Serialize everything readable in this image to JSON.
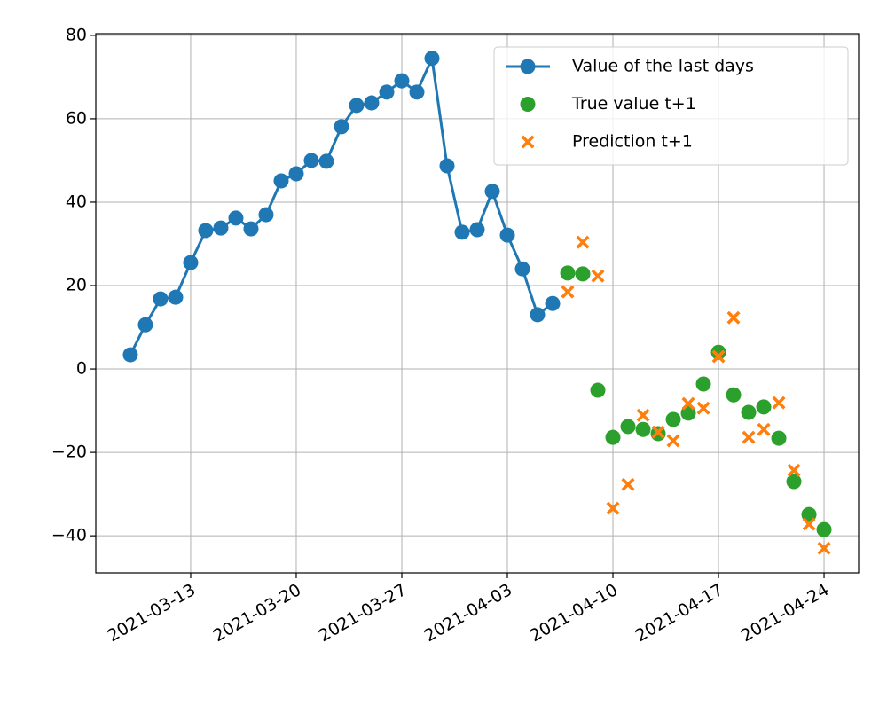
{
  "chart_data": {
    "type": "line",
    "series": [
      {
        "name": "Value of the last days",
        "type": "line",
        "color": "#1f77b4",
        "marker": "circle",
        "x": [
          "2021-03-09",
          "2021-03-10",
          "2021-03-11",
          "2021-03-12",
          "2021-03-13",
          "2021-03-14",
          "2021-03-15",
          "2021-03-16",
          "2021-03-17",
          "2021-03-18",
          "2021-03-19",
          "2021-03-20",
          "2021-03-21",
          "2021-03-22",
          "2021-03-23",
          "2021-03-24",
          "2021-03-25",
          "2021-03-26",
          "2021-03-27",
          "2021-03-28",
          "2021-03-29",
          "2021-03-30",
          "2021-03-31",
          "2021-04-01",
          "2021-04-02",
          "2021-04-03",
          "2021-04-04",
          "2021-04-05",
          "2021-04-06"
        ],
        "values": [
          3.4,
          10.6,
          16.8,
          17.2,
          25.5,
          33.2,
          33.8,
          36.2,
          33.6,
          37.0,
          45.1,
          46.8,
          50.0,
          49.8,
          58.1,
          63.2,
          63.8,
          66.4,
          69.1,
          66.4,
          74.5,
          48.7,
          32.8,
          33.4,
          42.6,
          32.1,
          24.0,
          13.0,
          15.7
        ]
      },
      {
        "name": "True value t+1",
        "type": "scatter",
        "color": "#2ca02c",
        "marker": "circle",
        "x": [
          "2021-04-07",
          "2021-04-08",
          "2021-04-09",
          "2021-04-10",
          "2021-04-11",
          "2021-04-12",
          "2021-04-13",
          "2021-04-14",
          "2021-04-15",
          "2021-04-16",
          "2021-04-17",
          "2021-04-18",
          "2021-04-19",
          "2021-04-20",
          "2021-04-21",
          "2021-04-22",
          "2021-04-23",
          "2021-04-24"
        ],
        "values": [
          23.0,
          22.8,
          -5.1,
          -16.4,
          -13.8,
          -14.5,
          -15.5,
          -12.1,
          -10.6,
          -3.6,
          4.0,
          -6.2,
          -10.4,
          -9.1,
          -16.6,
          -27.0,
          -34.9,
          -38.5
        ]
      },
      {
        "name": "Prediction t+1",
        "type": "scatter",
        "color": "#ff7f0e",
        "marker": "x",
        "x": [
          "2021-04-07",
          "2021-04-08",
          "2021-04-09",
          "2021-04-10",
          "2021-04-11",
          "2021-04-12",
          "2021-04-13",
          "2021-04-14",
          "2021-04-15",
          "2021-04-16",
          "2021-04-17",
          "2021-04-18",
          "2021-04-19",
          "2021-04-20",
          "2021-04-21",
          "2021-04-22",
          "2021-04-23",
          "2021-04-24"
        ],
        "values": [
          18.5,
          30.4,
          22.3,
          -33.4,
          -27.7,
          -11.1,
          -15.1,
          -17.2,
          -8.3,
          -9.4,
          3.0,
          12.3,
          -16.4,
          -14.5,
          -8.1,
          -24.3,
          -37.2,
          -43.0
        ]
      }
    ],
    "xlim": [
      "2021-03-06T17:00",
      "2021-04-26T07:00"
    ],
    "xticks": [
      "2021-03-13",
      "2021-03-20",
      "2021-03-27",
      "2021-04-03",
      "2021-04-10",
      "2021-04-17",
      "2021-04-24"
    ],
    "ylim": [
      -48.9,
      80.4
    ],
    "yticks": [
      {
        "value": -40,
        "label": "−40"
      },
      {
        "value": -20,
        "label": "−20"
      },
      0,
      20,
      40,
      60,
      80
    ],
    "grid": true,
    "legend": "upper right"
  }
}
